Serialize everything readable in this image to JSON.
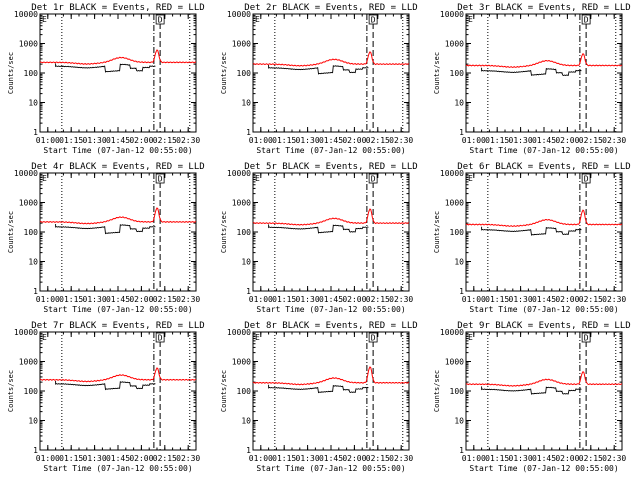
{
  "chart_data": {
    "type": "line",
    "xlabel": "Start Time (07-Jan-12 00:55:00)",
    "ylabel": "Counts/sec",
    "yscale": "log",
    "ylim": [
      1,
      10000
    ],
    "y_ticks": [
      1,
      10,
      100,
      1000,
      10000
    ],
    "y_tick_labels": [
      "1",
      "10",
      "100",
      "1000",
      "10000"
    ],
    "x_tick_labels": [
      "01:00",
      "01:15",
      "01:30",
      "01:45",
      "02:00",
      "02:15",
      "02:30"
    ],
    "x_ticks_min": [
      5,
      20,
      35,
      50,
      65,
      80,
      95
    ],
    "xlim_min": [
      0,
      100
    ],
    "dotted_vlines_min": [
      14,
      96
    ],
    "dashdot_vline_min": [
      73
    ],
    "dashed_vline_min": [
      77
    ],
    "corner_markers": [
      "E",
      "D"
    ],
    "series_colors": {
      "events": "#000000",
      "lld": "#ff0000"
    },
    "panels": [
      {
        "title": "Det 1r BLACK = Events, RED = LLD",
        "ev_base": 170,
        "lld_base": 230,
        "ev_dip": 110,
        "peak": 600
      },
      {
        "title": "Det 2r BLACK = Events, RED = LLD",
        "ev_base": 150,
        "lld_base": 200,
        "ev_dip": 95,
        "peak": 520
      },
      {
        "title": "Det 3r BLACK = Events, RED = LLD",
        "ev_base": 120,
        "lld_base": 180,
        "ev_dip": 85,
        "peak": 450
      },
      {
        "title": "Det 4r BLACK = Events, RED = LLD",
        "ev_base": 150,
        "lld_base": 220,
        "ev_dip": 90,
        "peak": 650
      },
      {
        "title": "Det 5r BLACK = Events, RED = LLD",
        "ev_base": 145,
        "lld_base": 200,
        "ev_dip": 95,
        "peak": 600
      },
      {
        "title": "Det 6r BLACK = Events, RED = LLD",
        "ev_base": 120,
        "lld_base": 180,
        "ev_dip": 80,
        "peak": 550
      },
      {
        "title": "Det 7r BLACK = Events, RED = LLD",
        "ev_base": 175,
        "lld_base": 240,
        "ev_dip": 115,
        "peak": 600
      },
      {
        "title": "Det 8r BLACK = Events, RED = LLD",
        "ev_base": 130,
        "lld_base": 190,
        "ev_dip": 90,
        "peak": 650
      },
      {
        "title": "Det 9r BLACK = Events, RED = LLD",
        "ev_base": 115,
        "lld_base": 170,
        "ev_dip": 80,
        "peak": 450
      }
    ]
  }
}
